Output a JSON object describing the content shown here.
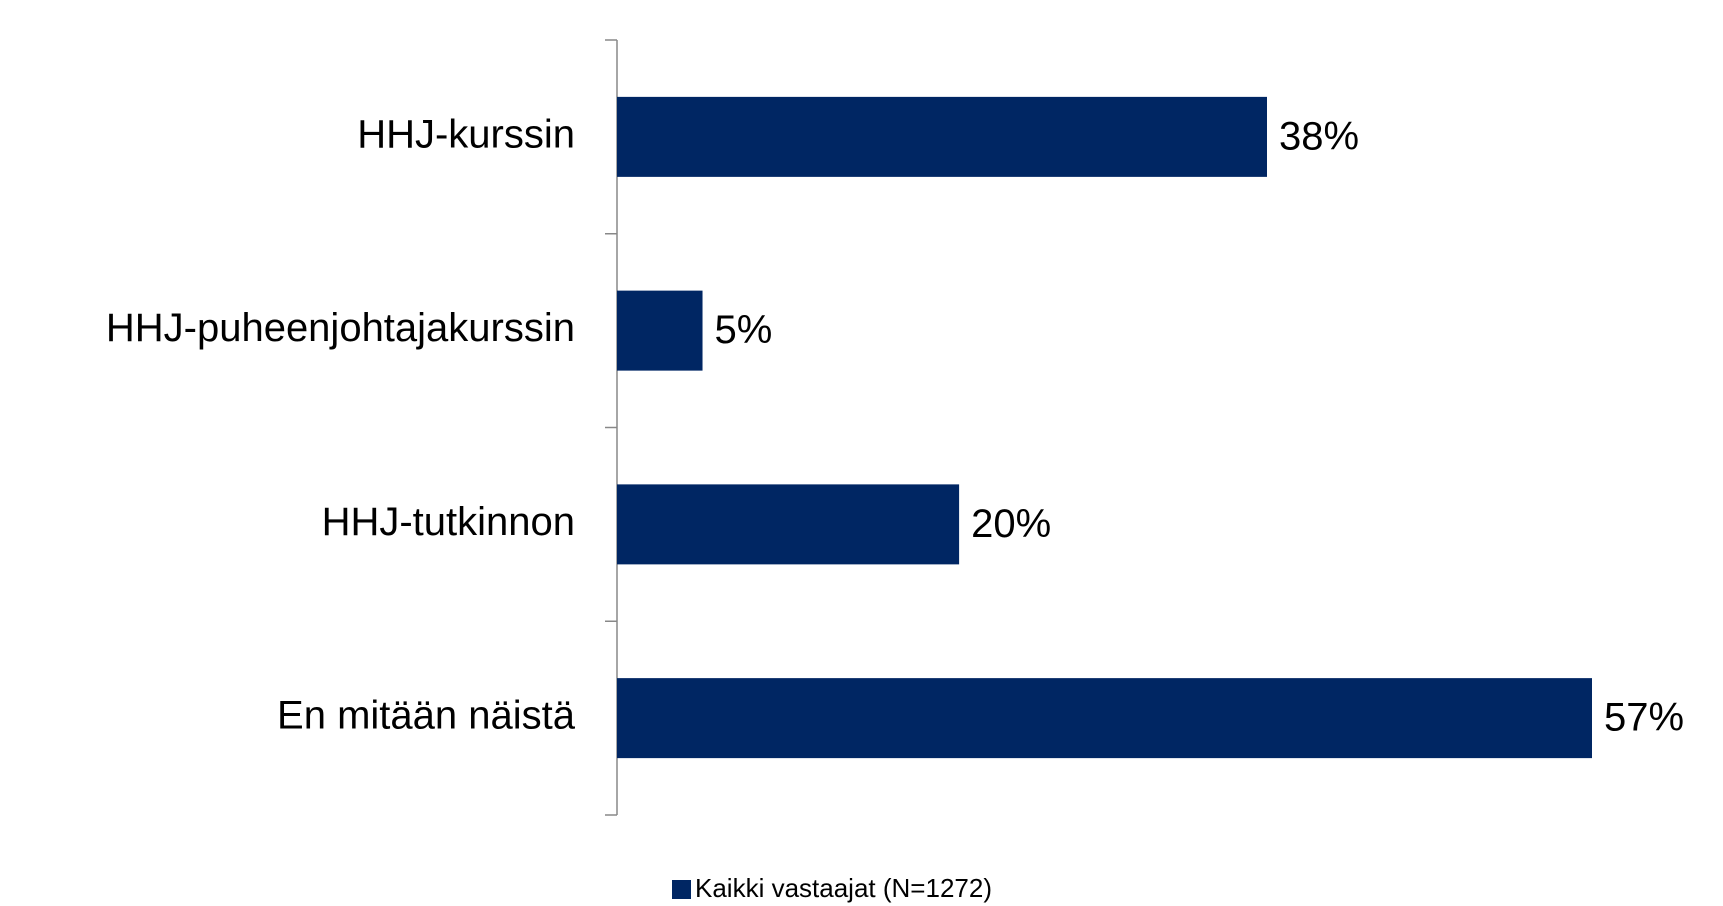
{
  "chart_data": {
    "type": "barh",
    "categories": [
      "HHJ-kurssin",
      "HHJ-puheenjohtajakurssin",
      "HHJ-tutkinnon",
      "En mitään näistä"
    ],
    "series": [
      {
        "name": "Kaikki vastaajat (N=1272)",
        "color": "#002663",
        "values": [
          38,
          5,
          20,
          57
        ],
        "value_labels": [
          "38%",
          "5%",
          "20%",
          "57%"
        ]
      }
    ],
    "legend": "bottom"
  }
}
